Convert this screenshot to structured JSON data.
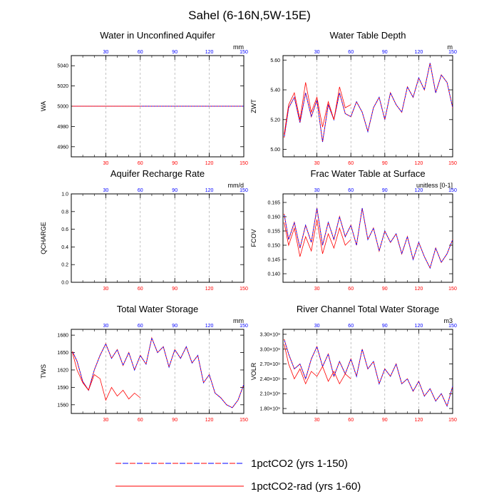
{
  "title": "Sahel (6-16N,5W-15E)",
  "colors": {
    "rcp_blue": "#0000ff",
    "rad_red": "#ff0000",
    "grid": "#999999",
    "axis": "#000000"
  },
  "legend": {
    "items": [
      {
        "label": "1pctCO2 (yrs 1-150)",
        "style": "dashed-blue-red"
      },
      {
        "label": "1pctCO2-rad (yrs 1-60)",
        "style": "solid-red"
      }
    ]
  },
  "chart_data": [
    {
      "type": "line",
      "title": "Water in Unconfined Aquifer",
      "ylabel": "WA",
      "unit": "mm",
      "xlim": [
        0,
        150
      ],
      "ylim": [
        4950,
        5050
      ],
      "yticks": [
        4960,
        4980,
        5000,
        5020,
        5040
      ],
      "ytick_labels": [
        "4960",
        "4980",
        "5000",
        "5020",
        "5040"
      ],
      "xticks_bottom": [
        30,
        60,
        90,
        120,
        150
      ],
      "xticks_top": [
        30,
        60,
        90,
        120,
        150
      ],
      "grid_x": [
        30,
        60,
        90,
        120
      ],
      "series": [
        {
          "name": "1pctCO2 (yrs 1-150)",
          "x": [
            1,
            150
          ],
          "y": [
            5000,
            5000
          ]
        },
        {
          "name": "1pctCO2-rad (yrs 1-60)",
          "x": [
            1,
            60
          ],
          "y": [
            5000,
            5000
          ]
        }
      ]
    },
    {
      "type": "line",
      "title": "Water Table Depth",
      "ylabel": "ZWT",
      "unit": "m",
      "xlim": [
        0,
        150
      ],
      "ylim": [
        4.95,
        5.63
      ],
      "yticks": [
        5.0,
        5.2,
        5.4,
        5.6
      ],
      "ytick_labels": [
        "5.00",
        "5.20",
        "5.40",
        "5.60"
      ],
      "xticks_bottom": [
        30,
        60,
        90,
        120,
        150
      ],
      "xticks_top": [
        30,
        60,
        90,
        120,
        150
      ],
      "grid_x": [
        30,
        60,
        90,
        120
      ],
      "series": [
        {
          "name": "1pctCO2 (yrs 1-150)",
          "x": [
            1,
            5,
            10,
            15,
            20,
            25,
            30,
            35,
            40,
            45,
            50,
            55,
            60,
            65,
            70,
            75,
            80,
            85,
            90,
            95,
            100,
            105,
            110,
            115,
            120,
            125,
            130,
            135,
            140,
            145,
            150
          ],
          "y": [
            5.08,
            5.28,
            5.35,
            5.18,
            5.38,
            5.22,
            5.33,
            5.05,
            5.3,
            5.2,
            5.38,
            5.24,
            5.22,
            5.32,
            5.25,
            5.12,
            5.28,
            5.35,
            5.2,
            5.38,
            5.3,
            5.25,
            5.42,
            5.35,
            5.48,
            5.4,
            5.58,
            5.38,
            5.5,
            5.45,
            5.28
          ]
        },
        {
          "name": "1pctCO2-rad (yrs 1-60)",
          "x": [
            1,
            5,
            10,
            15,
            20,
            25,
            30,
            35,
            40,
            45,
            50,
            55,
            60
          ],
          "y": [
            5.1,
            5.3,
            5.38,
            5.2,
            5.45,
            5.25,
            5.35,
            5.15,
            5.32,
            5.2,
            5.42,
            5.28,
            5.3
          ]
        }
      ]
    },
    {
      "type": "line",
      "title": "Aquifer Recharge Rate",
      "ylabel": "QCHARGE",
      "unit": "mm/d",
      "xlim": [
        0,
        150
      ],
      "ylim": [
        0.0,
        1.0
      ],
      "yticks": [
        0.0,
        0.2,
        0.4,
        0.6,
        0.8,
        1.0
      ],
      "ytick_labels": [
        "0.0",
        "0.2",
        "0.4",
        "0.6",
        "0.8",
        "1.0"
      ],
      "xticks_bottom": [
        30,
        60,
        90,
        120,
        150
      ],
      "xticks_top": [
        30,
        60,
        90,
        120,
        150
      ],
      "grid_x": [
        30,
        60,
        90,
        120
      ],
      "series": []
    },
    {
      "type": "line",
      "title": "Frac Water Table at Surface",
      "ylabel": "FCOV",
      "unit": "unitless [0-1]",
      "xlim": [
        0,
        150
      ],
      "ylim": [
        0.137,
        0.168
      ],
      "yticks": [
        0.14,
        0.145,
        0.15,
        0.155,
        0.16,
        0.165
      ],
      "ytick_labels": [
        "0.140",
        "0.145",
        "0.150",
        "0.155",
        "0.160",
        "0.165"
      ],
      "xticks_bottom": [
        30,
        60,
        90,
        120,
        150
      ],
      "xticks_top": [
        30,
        60,
        90,
        120,
        150
      ],
      "grid_x": [
        30,
        60,
        90,
        120
      ],
      "series": [
        {
          "name": "1pctCO2 (yrs 1-150)",
          "x": [
            1,
            5,
            10,
            15,
            20,
            25,
            30,
            35,
            40,
            45,
            50,
            55,
            60,
            65,
            70,
            75,
            80,
            85,
            90,
            95,
            100,
            105,
            110,
            115,
            120,
            125,
            130,
            135,
            140,
            145,
            150
          ],
          "y": [
            0.161,
            0.152,
            0.158,
            0.149,
            0.157,
            0.151,
            0.163,
            0.15,
            0.158,
            0.152,
            0.16,
            0.153,
            0.157,
            0.15,
            0.163,
            0.152,
            0.156,
            0.148,
            0.155,
            0.151,
            0.154,
            0.147,
            0.153,
            0.145,
            0.151,
            0.146,
            0.142,
            0.149,
            0.144,
            0.147,
            0.152
          ]
        },
        {
          "name": "1pctCO2-rad (yrs 1-60)",
          "x": [
            1,
            5,
            10,
            15,
            20,
            25,
            30,
            35,
            40,
            45,
            50,
            55,
            60
          ],
          "y": [
            0.158,
            0.15,
            0.156,
            0.146,
            0.153,
            0.148,
            0.159,
            0.147,
            0.154,
            0.149,
            0.156,
            0.15,
            0.152
          ]
        }
      ]
    },
    {
      "type": "line",
      "title": "Total Water Storage",
      "ylabel": "TWS",
      "unit": "mm",
      "xlim": [
        0,
        150
      ],
      "ylim": [
        1545,
        1690
      ],
      "yticks": [
        1560,
        1590,
        1620,
        1650,
        1680
      ],
      "ytick_labels": [
        "1560",
        "1590",
        "1620",
        "1650",
        "1680"
      ],
      "xticks_bottom": [
        30,
        60,
        90,
        120,
        150
      ],
      "xticks_top": [
        30,
        60,
        90,
        120,
        150
      ],
      "grid_x": [
        30,
        60,
        90,
        120
      ],
      "series": [
        {
          "name": "1pctCO2 (yrs 1-150)",
          "x": [
            1,
            5,
            10,
            15,
            20,
            25,
            30,
            35,
            40,
            45,
            50,
            55,
            60,
            65,
            70,
            75,
            80,
            85,
            90,
            95,
            100,
            105,
            110,
            115,
            120,
            125,
            130,
            135,
            140,
            145,
            150
          ],
          "y": [
            1652,
            1635,
            1600,
            1585,
            1620,
            1645,
            1665,
            1640,
            1655,
            1628,
            1650,
            1620,
            1645,
            1630,
            1675,
            1650,
            1660,
            1625,
            1655,
            1640,
            1660,
            1632,
            1645,
            1598,
            1612,
            1580,
            1572,
            1560,
            1555,
            1568,
            1595
          ]
        },
        {
          "name": "1pctCO2-rad (yrs 1-60)",
          "x": [
            1,
            5,
            10,
            15,
            20,
            25,
            30,
            35,
            40,
            45,
            50,
            55,
            60
          ],
          "y": [
            1650,
            1620,
            1598,
            1585,
            1612,
            1605,
            1568,
            1590,
            1575,
            1585,
            1570,
            1580,
            1572
          ]
        }
      ]
    },
    {
      "type": "line",
      "title": "River Channel Total Water Storage",
      "ylabel": "VOLR",
      "unit": "m3",
      "xlim": [
        0,
        150
      ],
      "ylim": [
        1700000000,
        3400000000
      ],
      "yticks": [
        1800000000,
        2100000000,
        2400000000,
        2700000000,
        3000000000,
        3300000000
      ],
      "ytick_labels": [
        "1.80×10⁹",
        "2.10×10⁹",
        "2.40×10⁹",
        "2.70×10⁹",
        "3.00×10⁹",
        "3.30×10⁹"
      ],
      "xticks_bottom": [
        30,
        60,
        90,
        120,
        150
      ],
      "xticks_top": [
        30,
        60,
        90,
        120,
        150
      ],
      "grid_x": [
        30,
        60,
        90,
        120
      ],
      "series": [
        {
          "name": "1pctCO2 (yrs 1-150)",
          "x": [
            1,
            5,
            10,
            15,
            20,
            25,
            30,
            35,
            40,
            45,
            50,
            55,
            60,
            65,
            70,
            75,
            80,
            85,
            90,
            95,
            100,
            105,
            110,
            115,
            120,
            125,
            130,
            135,
            140,
            145,
            150
          ],
          "y": [
            3200000000,
            2900000000,
            2600000000,
            2700000000,
            2400000000,
            2800000000,
            3050000000,
            2650000000,
            2900000000,
            2450000000,
            2750000000,
            2500000000,
            2800000000,
            2450000000,
            3000000000,
            2600000000,
            2750000000,
            2300000000,
            2600000000,
            2450000000,
            2700000000,
            2300000000,
            2400000000,
            2150000000,
            2350000000,
            2050000000,
            2200000000,
            1950000000,
            2100000000,
            1850000000,
            2250000000
          ]
        },
        {
          "name": "1pctCO2-rad (yrs 1-60)",
          "x": [
            1,
            5,
            10,
            15,
            20,
            25,
            30,
            35,
            40,
            45,
            50,
            55,
            60
          ],
          "y": [
            3100000000,
            2700000000,
            2400000000,
            2600000000,
            2300000000,
            2550000000,
            2450000000,
            2650000000,
            2350000000,
            2550000000,
            2300000000,
            2500000000,
            2400000000
          ]
        }
      ]
    }
  ]
}
